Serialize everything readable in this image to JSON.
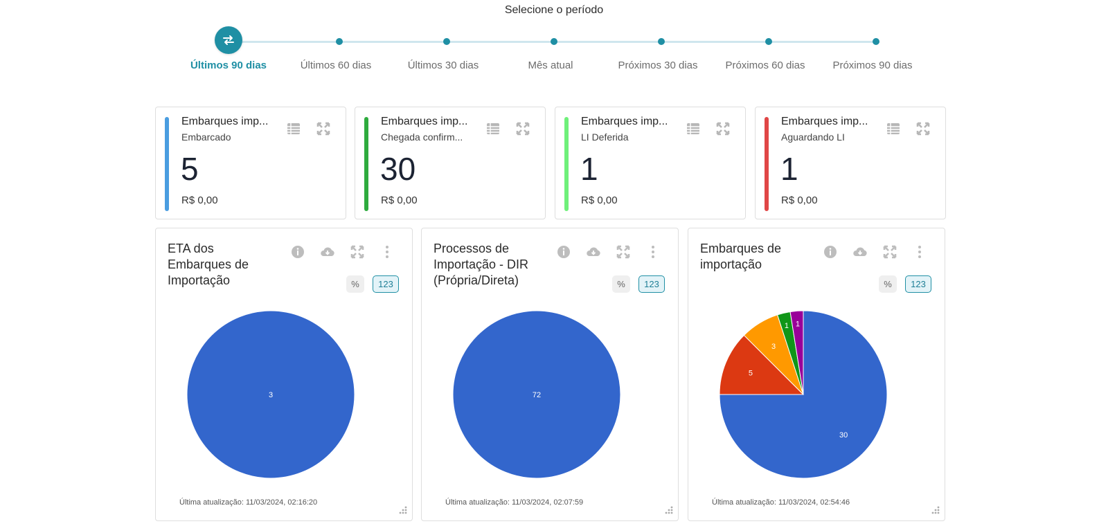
{
  "period_selector": {
    "title": "Selecione o período",
    "options": [
      {
        "label": "Últimos 90 dias",
        "active": true
      },
      {
        "label": "Últimos 60 dias",
        "active": false
      },
      {
        "label": "Últimos 30 dias",
        "active": false
      },
      {
        "label": "Mês atual",
        "active": false
      },
      {
        "label": "Próximos 30 dias",
        "active": false
      },
      {
        "label": "Próximos 60 dias",
        "active": false
      },
      {
        "label": "Próximos 90 dias",
        "active": false
      }
    ],
    "active_icon": "swap-arrows-icon"
  },
  "kpi_cards": [
    {
      "title": "Embarques imp...",
      "subtitle": "Embarcado",
      "count": "5",
      "amount": "R$ 0,00",
      "color": "#4a9de0"
    },
    {
      "title": "Embarques imp...",
      "subtitle": "Chegada confirm...",
      "count": "30",
      "amount": "R$ 0,00",
      "color": "#2eab3e"
    },
    {
      "title": "Embarques imp...",
      "subtitle": "LI Deferida",
      "count": "1",
      "amount": "R$ 0,00",
      "color": "#6ff07a"
    },
    {
      "title": "Embarques imp...",
      "subtitle": "Aguardando LI",
      "count": "1",
      "amount": "R$ 0,00",
      "color": "#e04646"
    }
  ],
  "kpi_icons": [
    "table-icon",
    "expand-icon"
  ],
  "chart_tools": [
    "info-icon",
    "cloud-download-icon",
    "expand-icon",
    "more-vertical-icon"
  ],
  "format_buttons": {
    "percent": "%",
    "number": "123"
  },
  "chart_data": [
    {
      "type": "pie",
      "title": "ETA dos Embarques de Importação",
      "slices": [
        {
          "value": 3,
          "label": "3",
          "color": "#3366cc"
        }
      ],
      "updated": "Última atualização: 11/03/2024, 02:16:20"
    },
    {
      "type": "pie",
      "title": "Processos de Importação - DIR (Própria/Direta)",
      "slices": [
        {
          "value": 72,
          "label": "72",
          "color": "#3366cc"
        }
      ],
      "updated": "Última atualização: 11/03/2024, 02:07:59"
    },
    {
      "type": "pie",
      "title": "Embarques de importação",
      "slices": [
        {
          "value": 30,
          "label": "30",
          "color": "#3366cc"
        },
        {
          "value": 5,
          "label": "5",
          "color": "#dc3912"
        },
        {
          "value": 3,
          "label": "3",
          "color": "#ff9900"
        },
        {
          "value": 1,
          "label": "1",
          "color": "#109618"
        },
        {
          "value": 1,
          "label": "1",
          "color": "#990099"
        }
      ],
      "updated": "Última atualização: 11/03/2024, 02:54:46"
    }
  ]
}
